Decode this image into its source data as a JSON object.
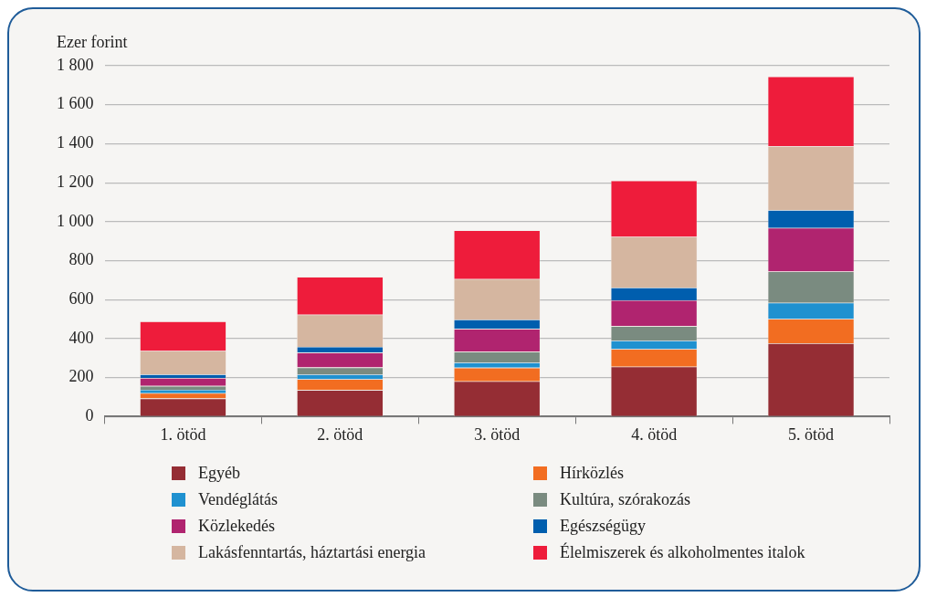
{
  "chart_data": {
    "type": "bar",
    "stacked": true,
    "ylabel": "Ezer forint",
    "categories": [
      "1. ötöd",
      "2. ötöd",
      "3. ötöd",
      "4. ötöd",
      "5. ötöd"
    ],
    "ylim": [
      0,
      1800
    ],
    "yticks": [
      0,
      200,
      400,
      600,
      800,
      {
        "value": 1000,
        "label": "1 000"
      },
      {
        "value": 1200,
        "label": "1 200"
      },
      {
        "value": 1400,
        "label": "1 400"
      },
      {
        "value": 1600,
        "label": "1 600"
      },
      {
        "value": 1800,
        "label": "1 800"
      }
    ],
    "grid": "y",
    "legend": "bottom",
    "series": [
      {
        "name": "Egyéb",
        "color": "#952d34",
        "values": [
          93,
          136,
          181,
          256,
          376
        ]
      },
      {
        "name": "Hírközlés",
        "color": "#f26d21",
        "values": [
          27,
          56,
          70,
          90,
          125
        ]
      },
      {
        "name": "Vendéglátás",
        "color": "#1f91d0",
        "values": [
          18,
          25,
          26,
          44,
          83
        ]
      },
      {
        "name": "Kultúra, szórakozás",
        "color": "#7a8b80",
        "values": [
          19,
          35,
          56,
          74,
          160
        ]
      },
      {
        "name": "Közlekedés",
        "color": "#b0246f",
        "values": [
          41,
          76,
          117,
          133,
          224
        ]
      },
      {
        "name": "Egészségügy",
        "color": "#005eae",
        "values": [
          18,
          30,
          48,
          65,
          91
        ]
      },
      {
        "name": "Lakásfenntartás, háztartási energia",
        "color": "#d5b6a0",
        "values": [
          121,
          165,
          208,
          260,
          328
        ]
      },
      {
        "name": "Élelmiszerek és alkoholmentes italok",
        "color": "#ee1c3b",
        "values": [
          151,
          194,
          249,
          288,
          357
        ]
      }
    ]
  }
}
